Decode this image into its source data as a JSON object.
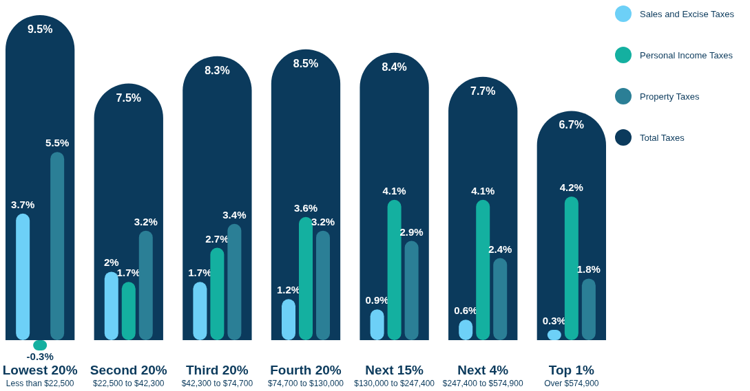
{
  "chart_data": {
    "type": "bar",
    "categories": [
      "Lowest 20%\nLess than $22,500",
      "Second 20%\n$22,500 to $42,300",
      "Third 20%\n$42,300 to $74,700",
      "Fourth 20%\n$74,700 to $130,000",
      "Next 15%\n$130,000 to $247,400",
      "Next 4%\n$247,400 to $574,900",
      "Top 1%\nOver $574,900"
    ],
    "series": [
      {
        "name": "Sales and Excise Taxes",
        "color": "#6dd0f7",
        "values": [
          3.7,
          2,
          1.7,
          1.2,
          0.9,
          0.6,
          0.3
        ],
        "value_labels": [
          "3.7%",
          "2%",
          "1.7%",
          "1.2%",
          "0.9%",
          "0.6%",
          "0.3%"
        ]
      },
      {
        "name": "Personal Income Taxes",
        "color": "#14b0a0",
        "values": [
          -0.3,
          1.7,
          2.7,
          3.6,
          4.1,
          4.1,
          4.2
        ],
        "value_labels": [
          "-0.3%",
          "1.7%",
          "2.7%",
          "3.6%",
          "4.1%",
          "4.1%",
          "4.2%"
        ]
      },
      {
        "name": "Property Taxes",
        "color": "#2b7f96",
        "values": [
          5.5,
          3.2,
          3.4,
          3.2,
          2.9,
          2.4,
          1.8
        ],
        "value_labels": [
          "5.5%",
          "3.2%",
          "3.4%",
          "3.2%",
          "2.9%",
          "2.4%",
          "1.8%"
        ]
      },
      {
        "name": "Total Taxes",
        "color": "#0b3a5c",
        "values": [
          9.5,
          7.5,
          8.3,
          8.5,
          8.4,
          7.7,
          6.7
        ],
        "value_labels": [
          "9.5%",
          "7.5%",
          "8.3%",
          "8.5%",
          "8.4%",
          "7.7%",
          "6.7%"
        ]
      }
    ],
    "legend": "top right"
  }
}
